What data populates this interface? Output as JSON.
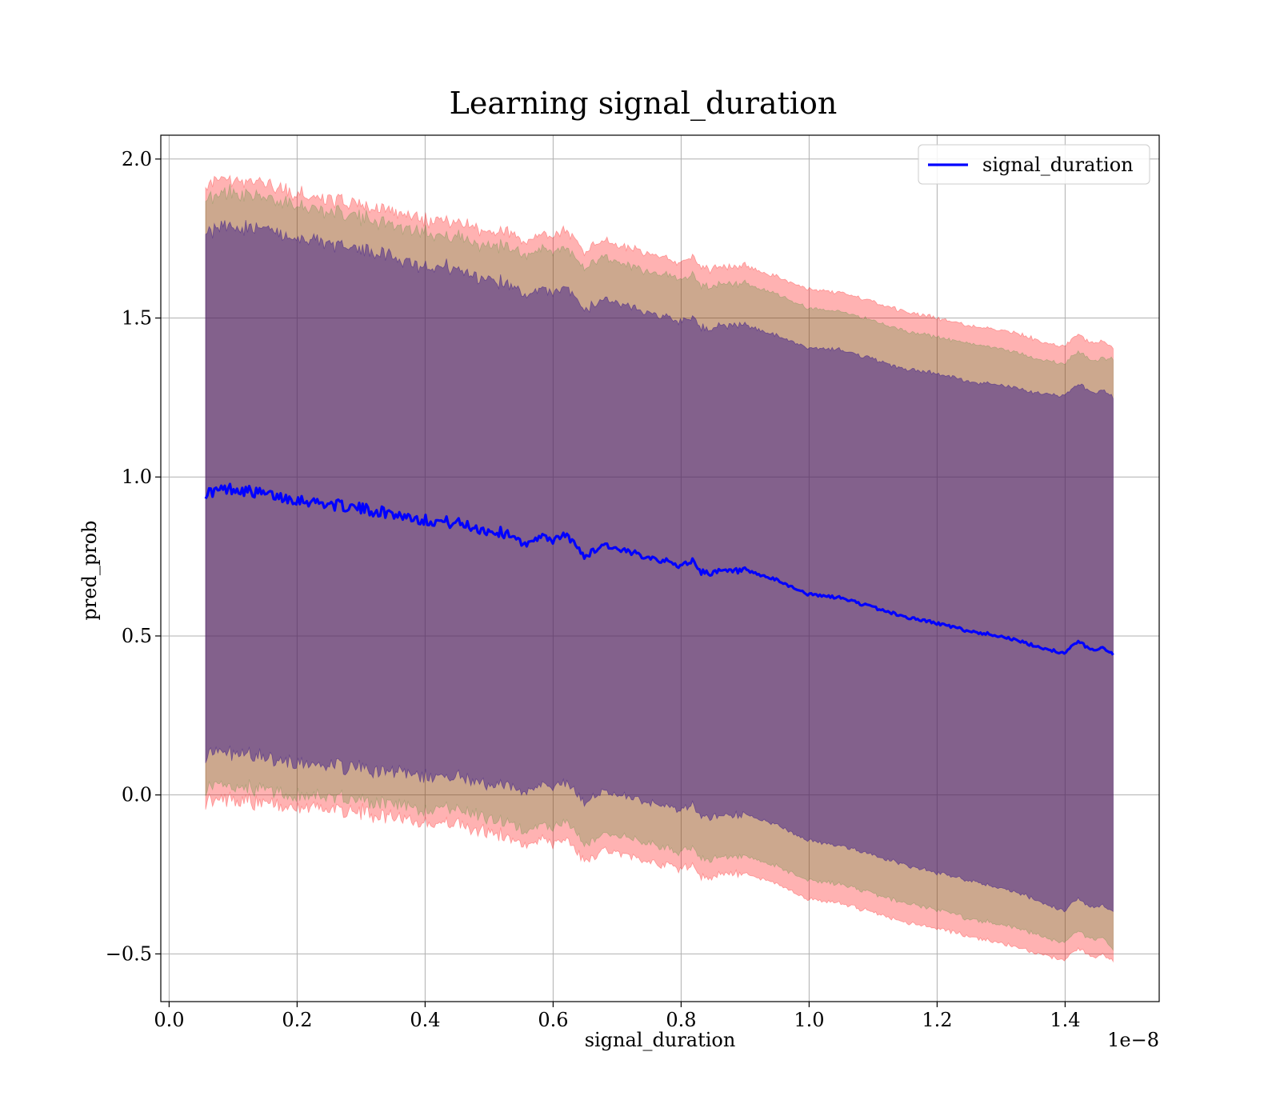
{
  "chart_data": {
    "type": "line",
    "title": "Learning signal_duration",
    "xlabel": "signal_duration",
    "ylabel": "pred_prob",
    "x_offset_label": "1e−8",
    "xlim": [
      -0.013,
      1.547
    ],
    "ylim": [
      -0.65,
      2.075
    ],
    "grid": true,
    "legend_position": "top-right",
    "x_ticks": [
      0.0,
      0.2,
      0.4,
      0.6,
      0.8,
      1.0,
      1.2,
      1.4
    ],
    "x_tick_labels": [
      "0.0",
      "0.2",
      "0.4",
      "0.6",
      "0.8",
      "1.0",
      "1.2",
      "1.4"
    ],
    "y_ticks": [
      -0.5,
      0.0,
      0.5,
      1.0,
      1.5,
      2.0
    ],
    "y_tick_labels": [
      "−0.5",
      "0.0",
      "0.5",
      "1.0",
      "1.5",
      "2.0"
    ],
    "x": [
      0.057,
      0.1,
      0.15,
      0.2,
      0.25,
      0.3,
      0.35,
      0.4,
      0.45,
      0.5,
      0.54,
      0.55,
      0.58,
      0.6,
      0.62,
      0.65,
      0.68,
      0.7,
      0.75,
      0.8,
      0.82,
      0.83,
      0.85,
      0.9,
      0.95,
      1.0,
      1.05,
      1.1,
      1.15,
      1.2,
      1.25,
      1.3,
      1.35,
      1.4,
      1.42,
      1.44,
      1.46,
      1.475
    ],
    "series": [
      {
        "name": "signal_duration",
        "color": "#0000ff",
        "values": [
          0.95,
          0.965,
          0.945,
          0.93,
          0.915,
          0.9,
          0.885,
          0.865,
          0.855,
          0.83,
          0.82,
          0.78,
          0.815,
          0.8,
          0.82,
          0.75,
          0.79,
          0.77,
          0.75,
          0.72,
          0.74,
          0.7,
          0.7,
          0.705,
          0.675,
          0.63,
          0.62,
          0.59,
          0.56,
          0.54,
          0.515,
          0.5,
          0.47,
          0.445,
          0.485,
          0.455,
          0.465,
          0.44
        ]
      }
    ],
    "bands": [
      {
        "color": "#ff0000",
        "opacity": 0.3,
        "half_widths": [
          0.97,
          0.975,
          0.975,
          0.965,
          0.96,
          0.955,
          0.95,
          0.945,
          0.945,
          0.945,
          0.955,
          0.95,
          0.95,
          0.955,
          0.96,
          0.96,
          0.96,
          0.955,
          0.955,
          0.955,
          0.955,
          0.955,
          0.955,
          0.955,
          0.955,
          0.96,
          0.96,
          0.96,
          0.96,
          0.96,
          0.96,
          0.965,
          0.965,
          0.965,
          0.965,
          0.965,
          0.965,
          0.965
        ]
      },
      {
        "color": "#008000",
        "opacity": 0.2,
        "half_widths": [
          0.93,
          0.935,
          0.935,
          0.925,
          0.92,
          0.915,
          0.91,
          0.905,
          0.9,
          0.9,
          0.91,
          0.905,
          0.905,
          0.905,
          0.905,
          0.905,
          0.905,
          0.9,
          0.9,
          0.9,
          0.9,
          0.9,
          0.9,
          0.9,
          0.9,
          0.9,
          0.9,
          0.9,
          0.9,
          0.9,
          0.905,
          0.905,
          0.905,
          0.91,
          0.91,
          0.91,
          0.91,
          0.93
        ]
      },
      {
        "color": "#3a1a8a",
        "opacity": 0.5,
        "half_widths": [
          0.82,
          0.83,
          0.83,
          0.825,
          0.82,
          0.815,
          0.81,
          0.8,
          0.8,
          0.79,
          0.785,
          0.78,
          0.78,
          0.775,
          0.78,
          0.775,
          0.775,
          0.775,
          0.77,
          0.77,
          0.77,
          0.77,
          0.77,
          0.77,
          0.77,
          0.775,
          0.78,
          0.78,
          0.78,
          0.785,
          0.785,
          0.79,
          0.795,
          0.81,
          0.81,
          0.81,
          0.81,
          0.81
        ]
      }
    ]
  }
}
